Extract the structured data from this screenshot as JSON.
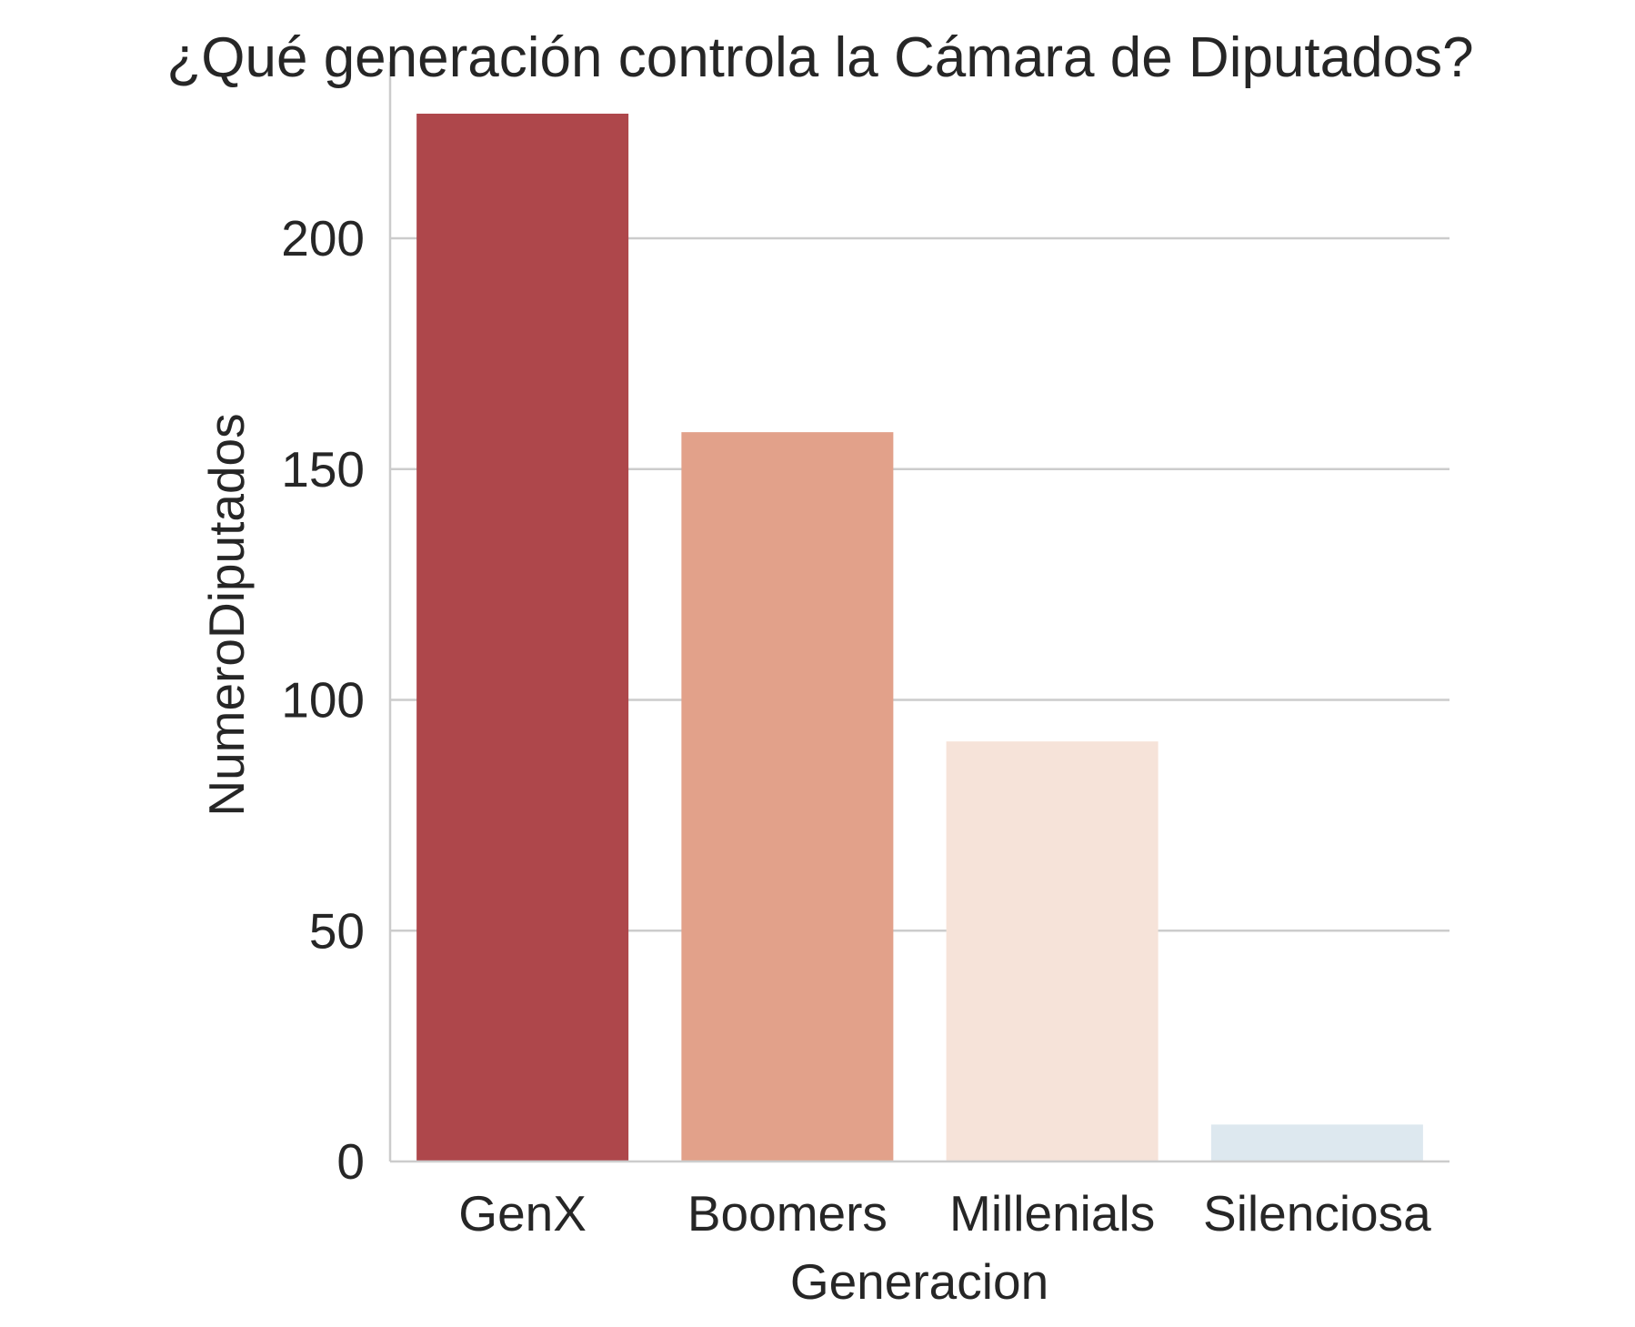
{
  "chart_data": {
    "type": "bar",
    "title": "¿Qué generación controla la Cámara de Diputados?",
    "xlabel": "Generacion",
    "ylabel": "NumeroDiputados",
    "categories": [
      "GenX",
      "Boomers",
      "Millenials",
      "Silenciosa"
    ],
    "values": [
      227,
      158,
      91,
      8
    ],
    "colors": [
      "#ae474b",
      "#e2a18a",
      "#f6e3d9",
      "#dde8ef"
    ],
    "ylim": [
      0,
      227
    ],
    "yticks": [
      0,
      50,
      100,
      150,
      200
    ],
    "grid": "horizontal",
    "legend": "none"
  }
}
